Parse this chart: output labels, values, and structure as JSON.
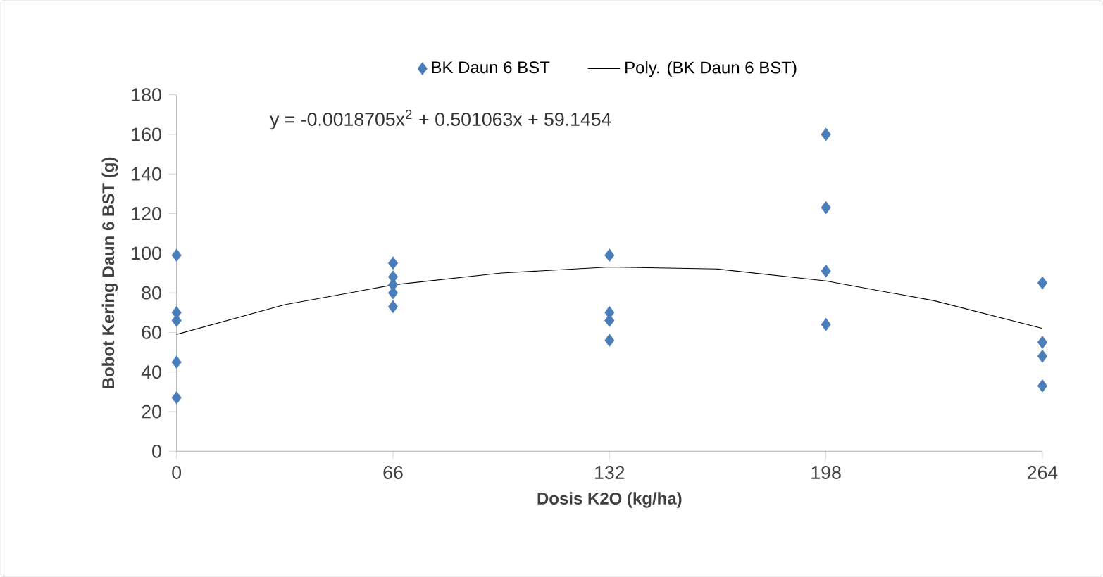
{
  "chart_data": {
    "type": "scatter",
    "xlabel": "Dosis K2O (kg/ha)",
    "ylabel": "Bobot Kering Daun 6 BST (g)",
    "annotations": [
      "y = -0.0018705x$^{2}$ + 0.501063x + 59.1454"
    ],
    "xlim": [
      0,
      264
    ],
    "xticks": [
      0,
      66,
      132,
      198,
      264
    ],
    "ylim": [
      0,
      180
    ],
    "yticks": [
      0,
      20,
      40,
      60,
      80,
      100,
      120,
      140,
      160,
      180
    ],
    "grid": false,
    "legend": "top",
    "series": [
      {
        "name": "BK Daun 6 BST",
        "marker": "diamond",
        "color": "#4a7ebb",
        "x": [
          0,
          0,
          0,
          0,
          0,
          66,
          66,
          66,
          66,
          66,
          132,
          132,
          132,
          132,
          198,
          198,
          198,
          198,
          264,
          264,
          264,
          264
        ],
        "values": [
          99,
          70,
          66,
          45,
          27,
          95,
          88,
          84,
          80,
          73,
          99,
          70,
          66,
          56,
          160,
          123,
          91,
          64,
          85,
          55,
          48,
          33
        ]
      },
      {
        "name": "Poly. (BK Daun 6 BST)",
        "type": "line",
        "marker": "none",
        "line_style": "solid",
        "color": "#000000",
        "x": [
          0,
          33,
          66,
          99,
          132,
          165,
          198,
          231,
          264
        ],
        "values": [
          59,
          74,
          84,
          90,
          93,
          92,
          86,
          76,
          62
        ]
      }
    ]
  }
}
